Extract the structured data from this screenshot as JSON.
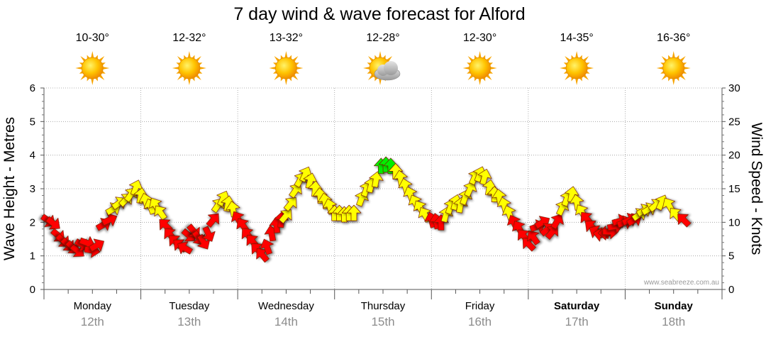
{
  "chart_data": {
    "type": "line",
    "title": "7 day wind & wave forecast for Alford",
    "ylabel_left": "Wave Height - Metres",
    "ylabel_right": "Wind Speed - Knots",
    "ylim_left": [
      0,
      6
    ],
    "ylim_right": [
      0,
      30
    ],
    "yticks_left": [
      "0",
      "1",
      "2",
      "3",
      "4",
      "5",
      "6"
    ],
    "yticks_right": [
      "0",
      "5",
      "10",
      "15",
      "20",
      "25",
      "30"
    ],
    "grid": true,
    "watermark": "www.seabreeze.com.au",
    "days": [
      {
        "name": "Monday",
        "date": "12th",
        "temp": "10-30°",
        "icon": "sun-icon",
        "bold": false
      },
      {
        "name": "Tuesday",
        "date": "13th",
        "temp": "12-32°",
        "icon": "sun-icon",
        "bold": false
      },
      {
        "name": "Wednesday",
        "date": "14th",
        "temp": "13-32°",
        "icon": "sun-icon",
        "bold": false
      },
      {
        "name": "Thursday",
        "date": "15th",
        "temp": "12-28°",
        "icon": "sun-cloud-icon",
        "bold": false
      },
      {
        "name": "Friday",
        "date": "16th",
        "temp": "12-30°",
        "icon": "sun-icon",
        "bold": false
      },
      {
        "name": "Saturday",
        "date": "17th",
        "temp": "14-35°",
        "icon": "sun-icon",
        "bold": true
      },
      {
        "name": "Sunday",
        "date": "18th",
        "temp": "16-36°",
        "icon": "sun-icon",
        "bold": true
      }
    ],
    "wind_colors": {
      "light": "#ff0000",
      "moderate": "#ffff00",
      "strong": "#00ee00"
    },
    "wind_series": [
      {
        "d": 0.05,
        "v": 10.2,
        "dir": 125
      },
      {
        "d": 0.1,
        "v": 9.8,
        "dir": 128
      },
      {
        "d": 0.15,
        "v": 8.0,
        "dir": 130
      },
      {
        "d": 0.2,
        "v": 7.2,
        "dir": 132
      },
      {
        "d": 0.25,
        "v": 6.6,
        "dir": 135
      },
      {
        "d": 0.3,
        "v": 6.2,
        "dir": 135
      },
      {
        "d": 0.35,
        "v": 5.7,
        "dir": 130
      },
      {
        "d": 0.4,
        "v": 6.6,
        "dir": 120
      },
      {
        "d": 0.45,
        "v": 6.9,
        "dir": 110
      },
      {
        "d": 0.5,
        "v": 5.8,
        "dir": 100
      },
      {
        "d": 0.55,
        "v": 6.6,
        "dir": 60
      },
      {
        "d": 0.62,
        "v": 9.7,
        "dir": 60
      },
      {
        "d": 0.68,
        "v": 10.4,
        "dir": 65
      },
      {
        "d": 0.72,
        "v": 12.0,
        "dir": 60
      },
      {
        "d": 0.78,
        "v": 12.9,
        "dir": 55
      },
      {
        "d": 0.85,
        "v": 13.4,
        "dir": 45
      },
      {
        "d": 0.9,
        "v": 14.2,
        "dir": 35
      },
      {
        "d": 0.95,
        "v": 15.2,
        "dir": 20
      },
      {
        "d": 1.0,
        "v": 14.0,
        "dir": 10
      },
      {
        "d": 1.05,
        "v": 13.2,
        "dir": 345
      },
      {
        "d": 1.1,
        "v": 12.4,
        "dir": 340
      },
      {
        "d": 1.15,
        "v": 12.6,
        "dir": 330
      },
      {
        "d": 1.2,
        "v": 11.5,
        "dir": 325
      },
      {
        "d": 1.25,
        "v": 9.6,
        "dir": 315
      },
      {
        "d": 1.3,
        "v": 8.2,
        "dir": 320
      },
      {
        "d": 1.35,
        "v": 7.2,
        "dir": 315
      },
      {
        "d": 1.4,
        "v": 6.6,
        "dir": 310
      },
      {
        "d": 1.45,
        "v": 6.2,
        "dir": 300
      },
      {
        "d": 1.5,
        "v": 8.0,
        "dir": 130
      },
      {
        "d": 1.55,
        "v": 8.6,
        "dir": 140
      },
      {
        "d": 1.6,
        "v": 7.6,
        "dir": 145
      },
      {
        "d": 1.65,
        "v": 7.0,
        "dir": 150
      },
      {
        "d": 1.7,
        "v": 8.2,
        "dir": 155
      },
      {
        "d": 1.75,
        "v": 10.4,
        "dir": 40
      },
      {
        "d": 1.8,
        "v": 12.6,
        "dir": 35
      },
      {
        "d": 1.85,
        "v": 13.6,
        "dir": 25
      },
      {
        "d": 1.9,
        "v": 12.8,
        "dir": 10
      },
      {
        "d": 1.95,
        "v": 12.0,
        "dir": 350
      },
      {
        "d": 2.0,
        "v": 10.6,
        "dir": 330
      },
      {
        "d": 2.05,
        "v": 9.6,
        "dir": 325
      },
      {
        "d": 2.1,
        "v": 8.2,
        "dir": 320
      },
      {
        "d": 2.15,
        "v": 7.2,
        "dir": 320
      },
      {
        "d": 2.2,
        "v": 6.0,
        "dir": 315
      },
      {
        "d": 2.25,
        "v": 5.2,
        "dir": 320
      },
      {
        "d": 2.3,
        "v": 6.4,
        "dir": 340
      },
      {
        "d": 2.35,
        "v": 8.4,
        "dir": 350
      },
      {
        "d": 2.4,
        "v": 9.6,
        "dir": 355
      },
      {
        "d": 2.45,
        "v": 10.4,
        "dir": 5
      },
      {
        "d": 2.5,
        "v": 11.0,
        "dir": 40
      },
      {
        "d": 2.55,
        "v": 12.8,
        "dir": 40
      },
      {
        "d": 2.6,
        "v": 14.8,
        "dir": 35
      },
      {
        "d": 2.65,
        "v": 16.4,
        "dir": 30
      },
      {
        "d": 2.7,
        "v": 17.2,
        "dir": 25
      },
      {
        "d": 2.75,
        "v": 16.2,
        "dir": 15
      },
      {
        "d": 2.8,
        "v": 15.0,
        "dir": 5
      },
      {
        "d": 2.85,
        "v": 14.0,
        "dir": 355
      },
      {
        "d": 2.9,
        "v": 13.2,
        "dir": 350
      },
      {
        "d": 2.95,
        "v": 12.4,
        "dir": 345
      },
      {
        "d": 3.0,
        "v": 11.4,
        "dir": 0
      },
      {
        "d": 3.05,
        "v": 11.4,
        "dir": 0
      },
      {
        "d": 3.1,
        "v": 11.2,
        "dir": 0
      },
      {
        "d": 3.15,
        "v": 11.4,
        "dir": 0
      },
      {
        "d": 3.2,
        "v": 11.4,
        "dir": 0
      },
      {
        "d": 3.28,
        "v": 13.6,
        "dir": 20
      },
      {
        "d": 3.33,
        "v": 15.0,
        "dir": 20
      },
      {
        "d": 3.38,
        "v": 15.6,
        "dir": 15
      },
      {
        "d": 3.43,
        "v": 16.4,
        "dir": 10
      },
      {
        "d": 3.48,
        "v": 18.4,
        "dir": 0
      },
      {
        "d": 3.53,
        "v": 18.6,
        "dir": 0
      },
      {
        "d": 3.58,
        "v": 18.4,
        "dir": 0
      },
      {
        "d": 3.63,
        "v": 17.6,
        "dir": 0
      },
      {
        "d": 3.68,
        "v": 16.6,
        "dir": 350
      },
      {
        "d": 3.73,
        "v": 15.4,
        "dir": 345
      },
      {
        "d": 3.78,
        "v": 14.2,
        "dir": 340
      },
      {
        "d": 3.83,
        "v": 13.0,
        "dir": 335
      },
      {
        "d": 3.88,
        "v": 12.2,
        "dir": 330
      },
      {
        "d": 3.93,
        "v": 11.2,
        "dir": 330
      },
      {
        "d": 4.0,
        "v": 10.4,
        "dir": 345
      },
      {
        "d": 4.05,
        "v": 10.2,
        "dir": 350
      },
      {
        "d": 4.1,
        "v": 10.0,
        "dir": 0
      },
      {
        "d": 4.15,
        "v": 11.2,
        "dir": 15
      },
      {
        "d": 4.2,
        "v": 12.4,
        "dir": 20
      },
      {
        "d": 4.25,
        "v": 13.0,
        "dir": 15
      },
      {
        "d": 4.3,
        "v": 12.6,
        "dir": 10
      },
      {
        "d": 4.35,
        "v": 13.8,
        "dir": 20
      },
      {
        "d": 4.4,
        "v": 15.0,
        "dir": 25
      },
      {
        "d": 4.45,
        "v": 16.8,
        "dir": 25
      },
      {
        "d": 4.5,
        "v": 17.2,
        "dir": 20
      },
      {
        "d": 4.55,
        "v": 16.8,
        "dir": 15
      },
      {
        "d": 4.6,
        "v": 15.2,
        "dir": 10
      },
      {
        "d": 4.65,
        "v": 14.2,
        "dir": 0
      },
      {
        "d": 4.7,
        "v": 13.8,
        "dir": 350
      },
      {
        "d": 4.75,
        "v": 12.6,
        "dir": 345
      },
      {
        "d": 4.8,
        "v": 11.4,
        "dir": 340
      },
      {
        "d": 4.85,
        "v": 10.0,
        "dir": 335
      },
      {
        "d": 4.9,
        "v": 9.2,
        "dir": 330
      },
      {
        "d": 4.95,
        "v": 8.0,
        "dir": 320
      },
      {
        "d": 5.0,
        "v": 6.8,
        "dir": 315
      },
      {
        "d": 5.05,
        "v": 7.8,
        "dir": 325
      },
      {
        "d": 5.1,
        "v": 9.4,
        "dir": 70
      },
      {
        "d": 5.15,
        "v": 10.0,
        "dir": 60
      },
      {
        "d": 5.2,
        "v": 9.0,
        "dir": 50
      },
      {
        "d": 5.25,
        "v": 8.6,
        "dir": 40
      },
      {
        "d": 5.3,
        "v": 10.2,
        "dir": 30
      },
      {
        "d": 5.35,
        "v": 12.2,
        "dir": 25
      },
      {
        "d": 5.4,
        "v": 13.6,
        "dir": 20
      },
      {
        "d": 5.45,
        "v": 14.2,
        "dir": 10
      },
      {
        "d": 5.5,
        "v": 13.0,
        "dir": 350
      },
      {
        "d": 5.55,
        "v": 11.6,
        "dir": 330
      },
      {
        "d": 5.6,
        "v": 10.6,
        "dir": 320
      },
      {
        "d": 5.65,
        "v": 9.4,
        "dir": 310
      },
      {
        "d": 5.7,
        "v": 8.6,
        "dir": 300
      },
      {
        "d": 5.75,
        "v": 8.2,
        "dir": 280
      },
      {
        "d": 5.8,
        "v": 8.4,
        "dir": 270
      },
      {
        "d": 5.85,
        "v": 8.6,
        "dir": 90
      },
      {
        "d": 5.9,
        "v": 9.4,
        "dir": 80
      },
      {
        "d": 5.95,
        "v": 10.2,
        "dir": 75
      },
      {
        "d": 6.0,
        "v": 10.0,
        "dir": 70
      },
      {
        "d": 6.05,
        "v": 10.4,
        "dir": 65
      },
      {
        "d": 6.1,
        "v": 10.4,
        "dir": 60
      },
      {
        "d": 6.15,
        "v": 11.2,
        "dir": 55
      },
      {
        "d": 6.2,
        "v": 11.8,
        "dir": 60
      },
      {
        "d": 6.25,
        "v": 12.0,
        "dir": 60
      },
      {
        "d": 6.32,
        "v": 12.6,
        "dir": 50
      },
      {
        "d": 6.38,
        "v": 13.0,
        "dir": 25
      },
      {
        "d": 6.45,
        "v": 12.6,
        "dir": 330
      },
      {
        "d": 6.52,
        "v": 11.2,
        "dir": 320
      },
      {
        "d": 6.6,
        "v": 10.4,
        "dir": 315
      }
    ]
  }
}
